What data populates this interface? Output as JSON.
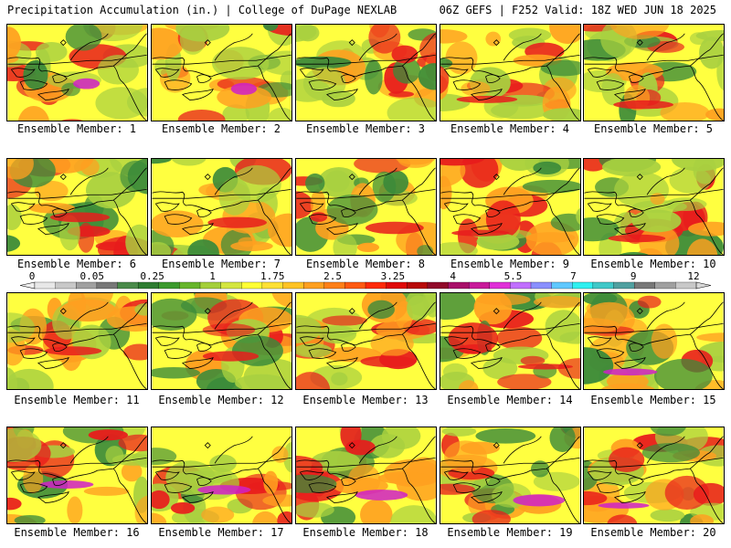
{
  "header": {
    "title_left": "Precipitation Accumulation (in.) | College of DuPage NEXLAB",
    "title_right": "06Z GEFS | F252 Valid: 18Z WED JUN 18 2025"
  },
  "panel_label_prefix": "Ensemble Member: ",
  "members": [
    1,
    2,
    3,
    4,
    5,
    6,
    7,
    8,
    9,
    10,
    11,
    12,
    13,
    14,
    15,
    16,
    17,
    18,
    19,
    20
  ],
  "colorbar": {
    "tick_labels": [
      "0",
      "0.05",
      "0.25",
      "1",
      "1.75",
      "2.5",
      "3.25",
      "4",
      "5.5",
      "7",
      "9",
      "12"
    ],
    "colors": [
      "#e8e8e8",
      "#c8c8c8",
      "#a0a0a0",
      "#787878",
      "#4a8a4a",
      "#2f7d32",
      "#3c9a2e",
      "#67b52c",
      "#a4cf3a",
      "#d4e640",
      "#ffff35",
      "#ffe135",
      "#ffc325",
      "#ffa020",
      "#ff8018",
      "#ff5a12",
      "#ff2a0a",
      "#e00a0a",
      "#b80a0a",
      "#900a2a",
      "#a8106a",
      "#c81a9a",
      "#e030d8",
      "#c070ff",
      "#8a90ff",
      "#60c8ff",
      "#30f0f0",
      "#40c8c8",
      "#50a0a0",
      "#787878",
      "#a0a0a0",
      "#c8c8c8"
    ]
  },
  "legend_colors": {
    "green_dark": "#3a8a3a",
    "green_light": "#a8d040",
    "yellow": "#ffff40",
    "orange": "#ffa020",
    "red": "#e81c1c",
    "magenta": "#d020c8",
    "cyan": "#40e8e8"
  }
}
